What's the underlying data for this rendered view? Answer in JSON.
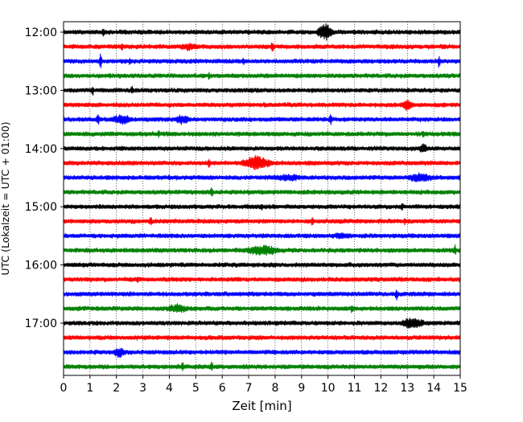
{
  "chart_data": {
    "type": "line",
    "title": "",
    "xlabel": "Zeit  [min]",
    "ylabel": "UTC (Lokalzeit = UTC + 01:00)",
    "xlim": [
      0,
      15
    ],
    "x_ticks": [
      "0",
      "1",
      "2",
      "3",
      "4",
      "5",
      "6",
      "7",
      "8",
      "9",
      "10",
      "11",
      "12",
      "13",
      "14",
      "15"
    ],
    "y_ticks": [
      "12:00",
      "13:00",
      "14:00",
      "15:00",
      "16:00",
      "17:00"
    ],
    "grid": "vertical dotted lines at every minute",
    "legend": "none",
    "trace_colors": [
      "#000000",
      "#ff0000",
      "#0000ff",
      "#008000"
    ],
    "trace_start_times": [
      "12:00",
      "12:15",
      "12:30",
      "12:45",
      "13:00",
      "13:15",
      "13:30",
      "13:45",
      "14:00",
      "14:15",
      "14:30",
      "14:45",
      "15:00",
      "15:15",
      "15:30",
      "15:45",
      "16:00",
      "16:15",
      "16:30",
      "16:45",
      "17:00",
      "17:15",
      "17:30",
      "17:45"
    ],
    "trace_duration_min": 15,
    "noise_amplitude": 1,
    "events": [
      {
        "trace": "12:00",
        "t": 1.5,
        "amp": 2.5
      },
      {
        "trace": "12:00",
        "t": 9.9,
        "amp": 4,
        "duration": 0.6
      },
      {
        "trace": "12:15",
        "t": 2.2,
        "amp": 2.2
      },
      {
        "trace": "12:15",
        "t": 4.7,
        "amp": 1.8,
        "duration": 1
      },
      {
        "trace": "12:15",
        "t": 7.9,
        "amp": 3.5
      },
      {
        "trace": "12:30",
        "t": 1.4,
        "amp": 4
      },
      {
        "trace": "12:30",
        "t": 2.5,
        "amp": 1.8
      },
      {
        "trace": "12:30",
        "t": 6.8,
        "amp": 2
      },
      {
        "trace": "12:30",
        "t": 14.2,
        "amp": 3
      },
      {
        "trace": "12:45",
        "t": 5.5,
        "amp": 2
      },
      {
        "trace": "13:00",
        "t": 1.1,
        "amp": 2.5
      },
      {
        "trace": "13:00",
        "t": 2.6,
        "amp": 2.5
      },
      {
        "trace": "13:15",
        "t": 13.0,
        "amp": 3,
        "duration": 0.5
      },
      {
        "trace": "13:30",
        "t": 1.3,
        "amp": 3
      },
      {
        "trace": "13:30",
        "t": 2.2,
        "amp": 2.5,
        "duration": 0.8
      },
      {
        "trace": "13:30",
        "t": 4.5,
        "amp": 2.5,
        "duration": 0.6
      },
      {
        "trace": "13:30",
        "t": 10.1,
        "amp": 3.5
      },
      {
        "trace": "13:45",
        "t": 3.6,
        "amp": 2
      },
      {
        "trace": "13:45",
        "t": 13.6,
        "amp": 2.5
      },
      {
        "trace": "14:00",
        "t": 13.6,
        "amp": 2.5,
        "duration": 0.4
      },
      {
        "trace": "14:15",
        "t": 5.5,
        "amp": 2.5
      },
      {
        "trace": "14:15",
        "t": 7.3,
        "amp": 3.5,
        "duration": 1.2
      },
      {
        "trace": "14:30",
        "t": 4.0,
        "amp": 2
      },
      {
        "trace": "14:30",
        "t": 8.5,
        "amp": 1.8,
        "duration": 1.5
      },
      {
        "trace": "14:30",
        "t": 13.5,
        "amp": 2.5,
        "duration": 1
      },
      {
        "trace": "14:45",
        "t": 5.6,
        "amp": 3
      },
      {
        "trace": "15:00",
        "t": 7.5,
        "amp": 2
      },
      {
        "trace": "15:00",
        "t": 12.8,
        "amp": 2.5
      },
      {
        "trace": "15:15",
        "t": 3.3,
        "amp": 2.5
      },
      {
        "trace": "15:15",
        "t": 9.4,
        "amp": 2.5
      },
      {
        "trace": "15:15",
        "t": 12.9,
        "amp": 2
      },
      {
        "trace": "15:30",
        "t": 10.5,
        "amp": 1.6,
        "duration": 1
      },
      {
        "trace": "15:45",
        "t": 7.5,
        "amp": 2.5,
        "duration": 1.5
      },
      {
        "trace": "15:45",
        "t": 14.8,
        "amp": 3
      },
      {
        "trace": "16:15",
        "t": 2.8,
        "amp": 2
      },
      {
        "trace": "16:30",
        "t": 12.6,
        "amp": 3
      },
      {
        "trace": "16:45",
        "t": 4.3,
        "amp": 2.2,
        "duration": 1
      },
      {
        "trace": "16:45",
        "t": 10.9,
        "amp": 2
      },
      {
        "trace": "17:00",
        "t": 13.2,
        "amp": 3,
        "duration": 0.9
      },
      {
        "trace": "17:30",
        "t": 2.1,
        "amp": 2.5,
        "duration": 0.5
      },
      {
        "trace": "17:45",
        "t": 4.5,
        "amp": 2.5
      },
      {
        "trace": "17:45",
        "t": 5.6,
        "amp": 2.5
      }
    ]
  }
}
